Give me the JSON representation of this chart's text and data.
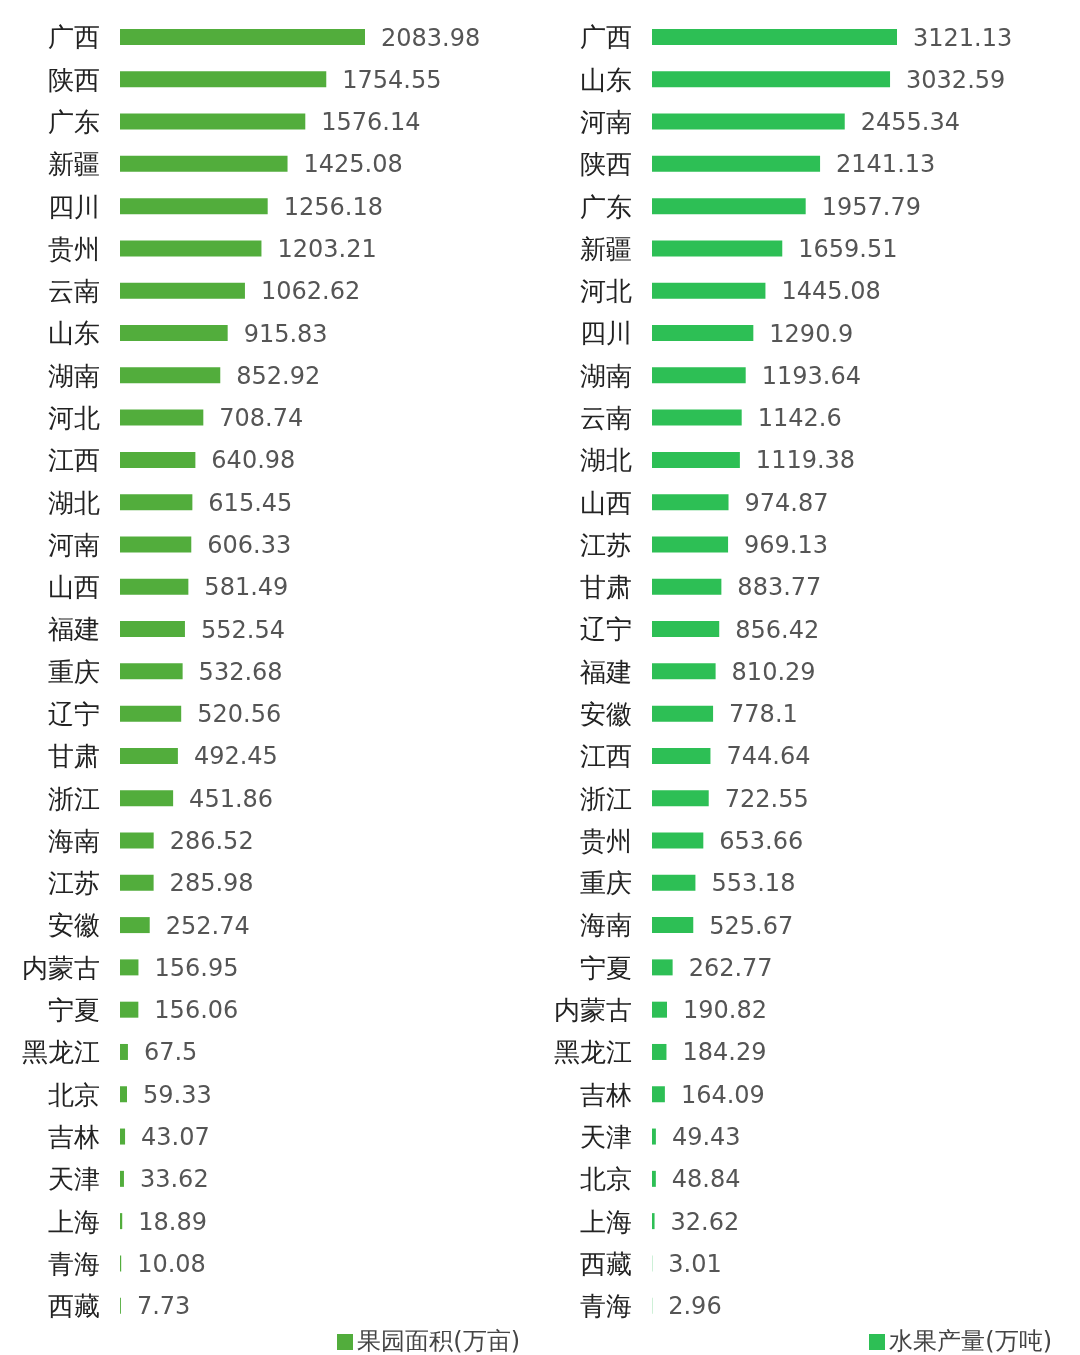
{
  "chart_data": [
    {
      "type": "bar",
      "orientation": "horizontal",
      "data_labels": true,
      "grid": false,
      "tick_labels": "y",
      "legend": "bottom right",
      "categories": [
        "广西",
        "陕西",
        "广东",
        "新疆",
        "四川",
        "贵州",
        "云南",
        "山东",
        "湖南",
        "河北",
        "江西",
        "湖北",
        "河南",
        "山西",
        "福建",
        "重庆",
        "辽宁",
        "甘肃",
        "浙江",
        "海南",
        "江苏",
        "安徽",
        "内蒙古",
        "宁夏",
        "黑龙江",
        "北京",
        "吉林",
        "天津",
        "上海",
        "青海",
        "西藏"
      ],
      "series": [
        {
          "name": "果园面积(万亩)",
          "color": "#52ad3c",
          "values": [
            2083.98,
            1754.55,
            1576.14,
            1425.08,
            1256.18,
            1203.21,
            1062.62,
            915.83,
            852.92,
            708.74,
            640.98,
            615.45,
            606.33,
            581.49,
            552.54,
            532.68,
            520.56,
            492.45,
            451.86,
            286.52,
            285.98,
            252.74,
            156.95,
            156.06,
            67.5,
            59.33,
            43.07,
            33.62,
            18.89,
            10.08,
            7.73
          ]
        }
      ]
    },
    {
      "type": "bar",
      "orientation": "horizontal",
      "data_labels": true,
      "grid": false,
      "tick_labels": "y",
      "legend": "bottom right",
      "categories": [
        "广西",
        "山东",
        "河南",
        "陕西",
        "广东",
        "新疆",
        "河北",
        "四川",
        "湖南",
        "云南",
        "湖北",
        "山西",
        "江苏",
        "甘肃",
        "辽宁",
        "福建",
        "安徽",
        "江西",
        "浙江",
        "贵州",
        "重庆",
        "海南",
        "宁夏",
        "内蒙古",
        "黑龙江",
        "吉林",
        "天津",
        "北京",
        "上海",
        "西藏",
        "青海"
      ],
      "series": [
        {
          "name": "水果产量(万吨)",
          "color": "#2dbf55",
          "values": [
            3121.13,
            3032.59,
            2455.34,
            2141.13,
            1957.79,
            1659.51,
            1445.08,
            1290.9,
            1193.64,
            1142.6,
            1119.38,
            974.87,
            969.13,
            883.77,
            856.42,
            810.29,
            778.1,
            744.64,
            722.55,
            653.66,
            553.18,
            525.67,
            262.77,
            190.82,
            184.29,
            164.09,
            49.43,
            48.84,
            32.62,
            3.01,
            2.96
          ]
        }
      ]
    }
  ]
}
